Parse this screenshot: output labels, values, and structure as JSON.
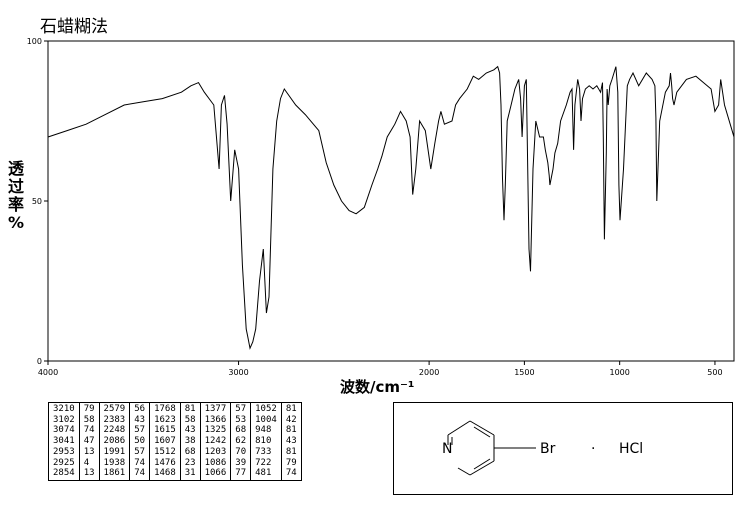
{
  "title": "石蜡糊法",
  "xaxis_label": "波数/cm⁻¹",
  "yaxis_label": [
    "透",
    "过",
    "率",
    "%"
  ],
  "compound_label": "N",
  "substituent_label": "Br",
  "salt_dot": "·",
  "salt_label": "HCl",
  "peak_table": {
    "columns": [
      {
        "wn": [
          "3210",
          "3102",
          "3074",
          "3041",
          "2953",
          "2925",
          "2854"
        ],
        "t": [
          "79",
          "58",
          "74",
          "47",
          "13",
          "4",
          "13"
        ]
      },
      {
        "wn": [
          "2579",
          "2383",
          "2248",
          "2086",
          "1991",
          "1938",
          "1861"
        ],
        "t": [
          "56",
          "43",
          "57",
          "50",
          "57",
          "74",
          "74"
        ]
      },
      {
        "wn": [
          "1768",
          "1623",
          "1615",
          "1607",
          "1512",
          "1476",
          "1468"
        ],
        "t": [
          "81",
          "58",
          "43",
          "38",
          "68",
          "23",
          "31"
        ]
      },
      {
        "wn": [
          "1377",
          "1366",
          "1325",
          "1242",
          "1203",
          "1086",
          "1066"
        ],
        "t": [
          "57",
          "53",
          "68",
          "62",
          "70",
          "39",
          "77"
        ]
      },
      {
        "wn": [
          "1052",
          "1004",
          "948",
          "810",
          "733",
          "722",
          "481"
        ],
        "t": [
          "81",
          "42",
          "81",
          "43",
          "81",
          "79",
          "74"
        ]
      }
    ]
  },
  "chart_data": {
    "type": "line",
    "title": "石蜡糊法",
    "xlabel": "波数/cm⁻¹",
    "ylabel": "透过率 %",
    "xlim": [
      4000,
      400
    ],
    "ylim": [
      0,
      100
    ],
    "x_ticks": [
      4000,
      3000,
      2000,
      1500,
      1000,
      500
    ],
    "y_ticks": [
      0,
      50,
      100
    ],
    "x_tick_labels": [
      "4000",
      "3000",
      "2000",
      "1500",
      "1000",
      "500"
    ],
    "y_tick_labels": [
      "0",
      "50",
      "100"
    ],
    "grid": false,
    "series": [
      {
        "x": [
          4000,
          3900,
          3800,
          3700,
          3600,
          3500,
          3400,
          3300,
          3250,
          3210,
          3180,
          3130,
          3102,
          3090,
          3074,
          3060,
          3041,
          3020,
          3000,
          2980,
          2960,
          2953,
          2940,
          2925,
          2910,
          2890,
          2870,
          2854,
          2840,
          2820,
          2800,
          2780,
          2760,
          2700,
          2650,
          2579,
          2540,
          2500,
          2460,
          2420,
          2383,
          2340,
          2300,
          2270,
          2248,
          2220,
          2180,
          2150,
          2120,
          2100,
          2086,
          2070,
          2050,
          2020,
          1991,
          1970,
          1950,
          1938,
          1920,
          1880,
          1861,
          1840,
          1800,
          1768,
          1740,
          1700,
          1660,
          1640,
          1630,
          1623,
          1615,
          1607,
          1600,
          1590,
          1570,
          1550,
          1530,
          1520,
          1512,
          1500,
          1490,
          1476,
          1468,
          1455,
          1440,
          1420,
          1400,
          1390,
          1377,
          1370,
          1366,
          1350,
          1340,
          1325,
          1310,
          1280,
          1260,
          1250,
          1242,
          1235,
          1220,
          1210,
          1203,
          1195,
          1180,
          1160,
          1140,
          1120,
          1100,
          1090,
          1086,
          1080,
          1070,
          1066,
          1060,
          1052,
          1040,
          1020,
          1010,
          1004,
          998,
          980,
          960,
          948,
          930,
          900,
          860,
          830,
          815,
          810,
          805,
          790,
          760,
          740,
          733,
          727,
          722,
          715,
          700,
          650,
          600,
          560,
          520,
          500,
          481,
          470,
          450,
          420,
          400
        ],
        "y": [
          70,
          72,
          74,
          77,
          80,
          81,
          82,
          84,
          86,
          87,
          84,
          80,
          60,
          80,
          83,
          74,
          50,
          66,
          60,
          30,
          10,
          8,
          4,
          6,
          10,
          25,
          35,
          15,
          20,
          60,
          75,
          82,
          85,
          80,
          77,
          72,
          62,
          55,
          50,
          47,
          46,
          48,
          55,
          60,
          64,
          70,
          74,
          78,
          75,
          70,
          52,
          60,
          75,
          72,
          60,
          68,
          75,
          78,
          74,
          75,
          80,
          82,
          85,
          89,
          88,
          90,
          91,
          92,
          90,
          80,
          57,
          44,
          55,
          75,
          80,
          85,
          88,
          82,
          70,
          86,
          88,
          35,
          28,
          60,
          75,
          70,
          70,
          66,
          62,
          58,
          55,
          60,
          65,
          68,
          75,
          80,
          84,
          85,
          66,
          80,
          88,
          85,
          75,
          82,
          85,
          86,
          85,
          86,
          84,
          87,
          70,
          38,
          65,
          85,
          80,
          86,
          88,
          92,
          84,
          55,
          44,
          60,
          86,
          88,
          90,
          86,
          90,
          88,
          86,
          76,
          50,
          75,
          84,
          86,
          90,
          86,
          82,
          80,
          84,
          88,
          89,
          87,
          85,
          78,
          80,
          88,
          80,
          74,
          70
        ]
      }
    ]
  }
}
